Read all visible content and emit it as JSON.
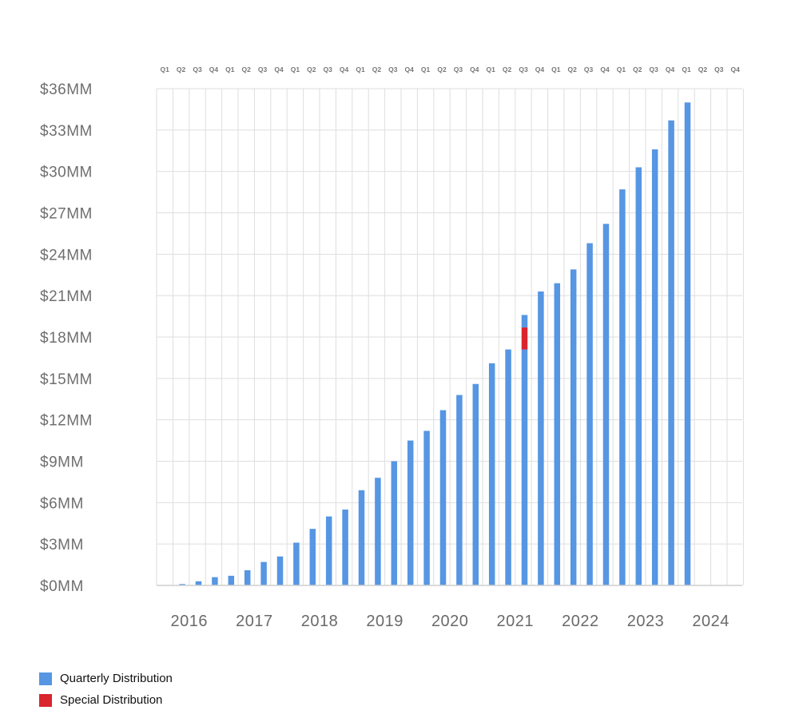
{
  "colors": {
    "quarterly": "#5696e3",
    "special": "#d9252e",
    "grid": "#dedede",
    "axis": "#cfcfcf"
  },
  "chart_data": {
    "type": "bar",
    "stacked": true,
    "title": "",
    "xlabel": "",
    "ylabel": "",
    "ylim": [
      0,
      36
    ],
    "yticks": [
      0,
      3,
      6,
      9,
      12,
      15,
      18,
      21,
      24,
      27,
      30,
      33,
      36
    ],
    "ytick_labels": [
      "$0MM",
      "$3MM",
      "$6MM",
      "$9MM",
      "$12MM",
      "$15MM",
      "$18MM",
      "$21MM",
      "$24MM",
      "$27MM",
      "$30MM",
      "$33MM",
      "$36MM"
    ],
    "years": [
      "2016",
      "2017",
      "2018",
      "2019",
      "2020",
      "2021",
      "2022",
      "2023",
      "2024"
    ],
    "quarters": [
      "Q1",
      "Q2",
      "Q3",
      "Q4"
    ],
    "categories": [
      "2016 Q1",
      "2016 Q2",
      "2016 Q3",
      "2016 Q4",
      "2017 Q1",
      "2017 Q2",
      "2017 Q3",
      "2017 Q4",
      "2018 Q1",
      "2018 Q2",
      "2018 Q3",
      "2018 Q4",
      "2019 Q1",
      "2019 Q2",
      "2019 Q3",
      "2019 Q4",
      "2020 Q1",
      "2020 Q2",
      "2020 Q3",
      "2020 Q4",
      "2021 Q1",
      "2021 Q2",
      "2021 Q3",
      "2021 Q4",
      "2022 Q1",
      "2022 Q2",
      "2022 Q3",
      "2022 Q4",
      "2023 Q1",
      "2023 Q2",
      "2023 Q3",
      "2023 Q4",
      "2024 Q1",
      "2024 Q2",
      "2024 Q3",
      "2024 Q4"
    ],
    "series": [
      {
        "name": "Quarterly Distribution",
        "values": [
          0,
          0.1,
          0.3,
          0.6,
          0.7,
          1.1,
          1.7,
          2.1,
          3.1,
          4.1,
          5.0,
          5.5,
          6.9,
          7.8,
          9.0,
          10.5,
          11.2,
          12.7,
          13.8,
          14.6,
          16.1,
          17.1,
          17.1,
          21.3,
          21.9,
          22.9,
          24.8,
          26.2,
          28.7,
          30.3,
          31.6,
          33.7,
          35.0,
          0,
          0,
          0
        ]
      },
      {
        "name": "Special Distribution",
        "values": [
          0,
          0,
          0,
          0,
          0,
          0,
          0,
          0,
          0,
          0,
          0,
          0,
          0,
          0,
          0,
          0,
          0,
          0,
          0,
          0,
          0,
          0,
          1.6,
          0,
          0,
          0,
          0,
          0,
          0,
          0,
          0,
          0,
          0,
          0,
          0,
          0
        ]
      },
      {
        "name": "Quarterly Distribution (top)",
        "values": [
          0,
          0,
          0,
          0,
          0,
          0,
          0,
          0,
          0,
          0,
          0,
          0,
          0,
          0,
          0,
          0,
          0,
          0,
          0,
          0,
          0,
          0,
          0.9,
          0,
          0,
          0,
          0,
          0,
          0,
          0,
          0,
          0,
          0,
          0,
          0,
          0
        ]
      }
    ],
    "legend": [
      {
        "label": "Quarterly Distribution",
        "color": "#5696e3"
      },
      {
        "label": "Special Distribution",
        "color": "#d9252e"
      }
    ],
    "legend_position": "bottom-left",
    "grid": true
  }
}
